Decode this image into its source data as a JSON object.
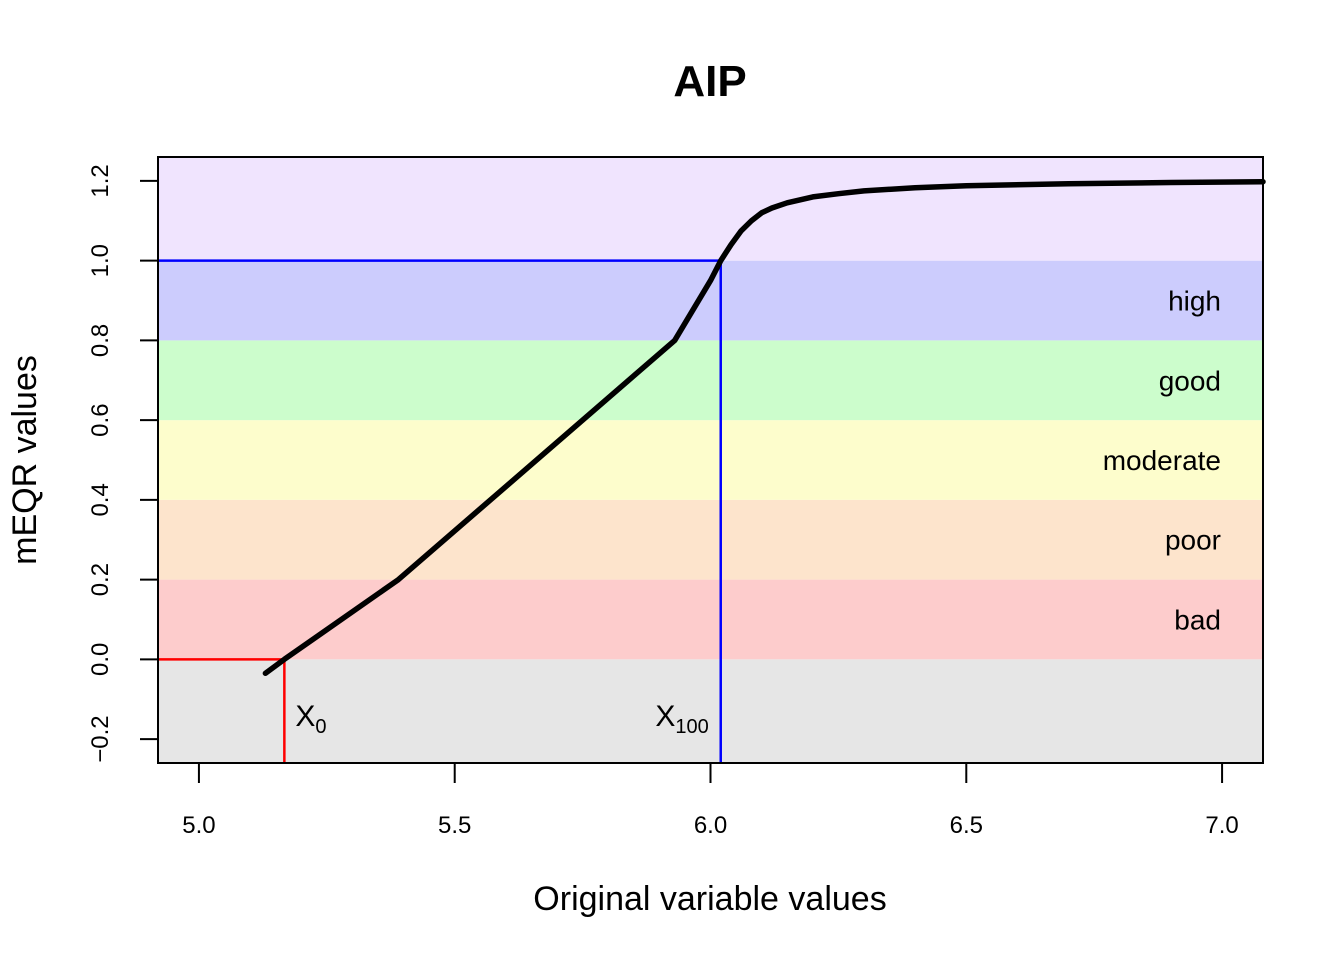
{
  "chart_data": {
    "type": "line",
    "title": "AIP",
    "xlabel": "Original variable values",
    "ylabel": "mEQR values",
    "xlim": [
      4.92,
      7.08
    ],
    "ylim": [
      -0.26,
      1.26
    ],
    "x_ticks": [
      5.0,
      5.5,
      6.0,
      6.5,
      7.0
    ],
    "x_tick_labels": [
      "5.0",
      "5.5",
      "6.0",
      "6.5",
      "7.0"
    ],
    "y_ticks": [
      -0.2,
      0.0,
      0.2,
      0.4,
      0.6,
      0.8,
      1.0,
      1.2
    ],
    "y_tick_labels": [
      "−0.2",
      "0.0",
      "0.2",
      "0.4",
      "0.6",
      "0.8",
      "1.0",
      "1.2"
    ],
    "bands": [
      {
        "from": -0.26,
        "to": 0.0,
        "label": "",
        "color": "#e6e6e6"
      },
      {
        "from": 0.0,
        "to": 0.2,
        "label": "bad",
        "color": "#fdcccc"
      },
      {
        "from": 0.2,
        "to": 0.4,
        "label": "poor",
        "color": "#fde4cc"
      },
      {
        "from": 0.4,
        "to": 0.6,
        "label": "moderate",
        "color": "#fdfdcc"
      },
      {
        "from": 0.6,
        "to": 0.8,
        "label": "good",
        "color": "#ccfdcc"
      },
      {
        "from": 0.8,
        "to": 1.0,
        "label": "high",
        "color": "#ccccfd"
      },
      {
        "from": 1.0,
        "to": 1.26,
        "label": "",
        "color": "#f0e4fe"
      }
    ],
    "series": [
      {
        "color": "#000000",
        "x": [
          5.13,
          5.167,
          5.39,
          5.93,
          6.0,
          6.02,
          6.04,
          6.06,
          6.08,
          6.1,
          6.12,
          6.15,
          6.2,
          6.25,
          6.3,
          6.4,
          6.5,
          6.7,
          6.9,
          7.08
        ],
        "y": [
          -0.035,
          0.0,
          0.2,
          0.8,
          0.95,
          1.0,
          1.04,
          1.075,
          1.1,
          1.12,
          1.132,
          1.145,
          1.16,
          1.168,
          1.175,
          1.183,
          1.188,
          1.193,
          1.196,
          1.198
        ]
      }
    ],
    "reference_lines": [
      {
        "name": "X",
        "subscript": "0",
        "x": 5.167,
        "y": 0.0,
        "color": "#ff0000"
      },
      {
        "name": "X",
        "subscript": "100",
        "x": 6.02,
        "y": 1.0,
        "color": "#0000ff"
      }
    ]
  }
}
